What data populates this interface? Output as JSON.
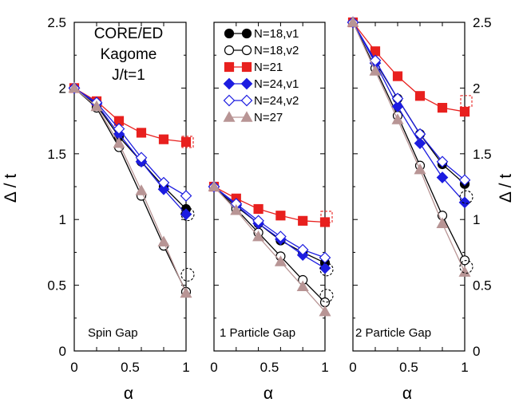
{
  "chart_data": [
    {
      "type": "line",
      "title": "",
      "annotation_lines": [
        "CORE/ED",
        "Kagome",
        "J/t=1"
      ],
      "panel_label": "Spin Gap",
      "xlabel": "α",
      "ylabel": "Δ / t",
      "xlim": [
        0,
        1
      ],
      "ylim": [
        0,
        2.5
      ],
      "xticks": [
        "0",
        "0.5",
        "1"
      ],
      "yticks": [
        "0",
        "0.5",
        "1",
        "1.5",
        "2",
        "2.5"
      ],
      "x": [
        0,
        0.2,
        0.4,
        0.6,
        0.8,
        1.0
      ],
      "series": [
        {
          "name": "N=18,v1",
          "values": [
            2.0,
            1.87,
            1.63,
            1.44,
            1.25,
            1.08
          ]
        },
        {
          "name": "N=18,v2",
          "values": [
            2.0,
            1.85,
            1.55,
            1.18,
            0.8,
            0.45
          ]
        },
        {
          "name": "N=21",
          "values": [
            2.0,
            1.9,
            1.75,
            1.66,
            1.61,
            1.59
          ]
        },
        {
          "name": "N=24,v1",
          "values": [
            2.0,
            1.88,
            1.65,
            1.44,
            1.23,
            1.04
          ]
        },
        {
          "name": "N=24,v2",
          "values": [
            2.0,
            1.89,
            1.69,
            1.47,
            1.28,
            1.18
          ]
        },
        {
          "name": "N=27",
          "values": [
            2.0,
            1.86,
            1.58,
            1.22,
            0.83,
            0.44
          ]
        }
      ],
      "dashed_extrapolation_circles": [
        1.04,
        0.58
      ],
      "dashed_extrapolation_squares": [
        1.59
      ]
    },
    {
      "type": "line",
      "title": "",
      "panel_label": "1 Particle Gap",
      "xlabel": "α",
      "ylabel": "",
      "xlim": [
        0,
        1
      ],
      "ylim": [
        0,
        2.5
      ],
      "xticks": [
        "0",
        "0.5",
        "1"
      ],
      "x": [
        0,
        0.2,
        0.4,
        0.6,
        0.8,
        1.0
      ],
      "series": [
        {
          "name": "N=18,v1",
          "values": [
            1.25,
            1.1,
            0.97,
            0.84,
            0.75,
            0.67
          ]
        },
        {
          "name": "N=18,v2",
          "values": [
            1.25,
            1.08,
            0.9,
            0.72,
            0.54,
            0.37
          ]
        },
        {
          "name": "N=21",
          "values": [
            1.25,
            1.16,
            1.08,
            1.03,
            0.99,
            0.98
          ]
        },
        {
          "name": "N=24,v1",
          "values": [
            1.25,
            1.11,
            0.97,
            0.85,
            0.73,
            0.63
          ]
        },
        {
          "name": "N=24,v2",
          "values": [
            1.25,
            1.12,
            0.99,
            0.87,
            0.77,
            0.71
          ]
        },
        {
          "name": "N=27",
          "values": [
            1.25,
            1.07,
            0.87,
            0.68,
            0.49,
            0.3
          ]
        }
      ],
      "dashed_extrapolation_circles": [
        0.62,
        0.42
      ],
      "dashed_extrapolation_squares": [
        1.02
      ]
    },
    {
      "type": "line",
      "title": "",
      "panel_label": "2 Particle Gap",
      "xlabel": "α",
      "ylabel": "Δ / t",
      "xlim": [
        0,
        1
      ],
      "ylim": [
        0,
        2.5
      ],
      "xticks": [
        "0",
        "0.5",
        "1"
      ],
      "yticks": [
        "0",
        "0.5",
        "1",
        "1.5",
        "2",
        "2.5"
      ],
      "x": [
        0,
        0.2,
        0.4,
        0.6,
        0.8,
        1.0
      ],
      "series": [
        {
          "name": "N=18,v1",
          "values": [
            2.5,
            2.2,
            1.92,
            1.65,
            1.42,
            1.27
          ]
        },
        {
          "name": "N=18,v2",
          "values": [
            2.5,
            2.15,
            1.79,
            1.41,
            1.03,
            0.69
          ]
        },
        {
          "name": "N=21",
          "values": [
            2.5,
            2.28,
            2.09,
            1.94,
            1.85,
            1.82
          ]
        },
        {
          "name": "N=24,v1",
          "values": [
            2.5,
            2.19,
            1.86,
            1.58,
            1.32,
            1.13
          ]
        },
        {
          "name": "N=24,v2",
          "values": [
            2.5,
            2.21,
            1.92,
            1.65,
            1.44,
            1.3
          ]
        },
        {
          "name": "N=27",
          "values": [
            2.5,
            2.13,
            1.76,
            1.38,
            0.97,
            0.6
          ]
        }
      ],
      "dashed_extrapolation_circles": [
        1.17,
        0.64
      ],
      "dashed_extrapolation_squares": [
        1.9
      ]
    }
  ],
  "colors": {
    "black": "#000000",
    "red": "#e8201e",
    "blue": "#1c1ce0",
    "tan": "#b89595"
  },
  "legend": {
    "placement": "top, middle panel",
    "entries": [
      {
        "label": "N=18,v1",
        "marker": "filled-circle",
        "color": "#000000"
      },
      {
        "label": "N=18,v2",
        "marker": "open-circle",
        "color": "#000000"
      },
      {
        "label": "N=21",
        "marker": "filled-square",
        "color": "#e8201e"
      },
      {
        "label": "N=24,v1",
        "marker": "filled-diamond",
        "color": "#1c1ce0"
      },
      {
        "label": "N=24,v2",
        "marker": "open-diamond",
        "color": "#1c1ce0"
      },
      {
        "label": "N=27",
        "marker": "filled-triangle",
        "color": "#b89595"
      }
    ]
  }
}
